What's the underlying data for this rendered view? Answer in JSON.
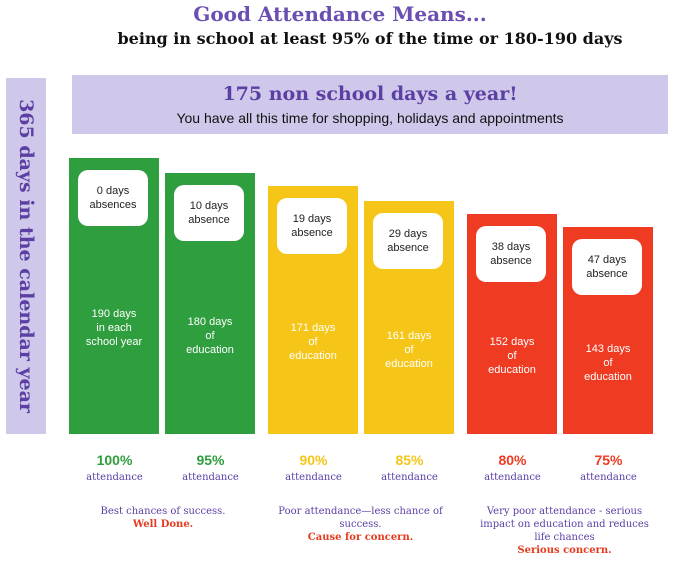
{
  "header": {
    "title": "Good Attendance Means...",
    "subtitle": "being in school at least 95% of the time or 180-190 days"
  },
  "side_label": "365 days in the calendar year",
  "banner": {
    "title": "175 non school days a year!",
    "subtitle": "You have all this time for shopping, holidays and appointments"
  },
  "colors": {
    "green": "#2f9e3f",
    "yellow": "#f5c518",
    "red": "#ee3b22",
    "purple": "#5b3fa3"
  },
  "chart_data": {
    "type": "bar",
    "title": "Good Attendance Means...",
    "categories": [
      "100%",
      "95%",
      "90%",
      "85%",
      "80%",
      "75%"
    ],
    "values": [
      190,
      180,
      171,
      161,
      152,
      143
    ],
    "absences": [
      0,
      10,
      19,
      29,
      38,
      47
    ],
    "bar_colors": [
      "#2f9e3f",
      "#2f9e3f",
      "#f5c518",
      "#f5c518",
      "#ee3b22",
      "#ee3b22"
    ],
    "pct_colors": [
      "#2f9e3f",
      "#2f9e3f",
      "#f5c518",
      "#f5c518",
      "#ee3b22",
      "#ee3b22"
    ]
  },
  "bars": [
    {
      "absence": "0 days\nabsences",
      "education": "190 days\nin each\nschool year",
      "percent": "100%",
      "attendance": "attendance"
    },
    {
      "absence": "10 days\nabsence",
      "education": "180 days\nof\neducation",
      "percent": "95%",
      "attendance": "attendance"
    },
    {
      "absence": "19 days\nabsence",
      "education": "171 days\nof\neducation",
      "percent": "90%",
      "attendance": "attendance"
    },
    {
      "absence": "29 days\nabsence",
      "education": "161 days\nof\neducation",
      "percent": "85%",
      "attendance": "attendance"
    },
    {
      "absence": "38 days\nabsence",
      "education": "152 days\nof\neducation",
      "percent": "80%",
      "attendance": "attendance"
    },
    {
      "absence": "47 days\nabsence",
      "education": "143 days\nof\neducation",
      "percent": "75%",
      "attendance": "attendance"
    }
  ],
  "notes": [
    {
      "text": "Best chances of success.",
      "emphasis": "Well Done."
    },
    {
      "text": "Poor attendance—less chance of success.",
      "emphasis": "Cause for concern."
    },
    {
      "text": "Very poor attendance - serious impact on education and reduces life chances",
      "emphasis": "Serious concern."
    }
  ]
}
